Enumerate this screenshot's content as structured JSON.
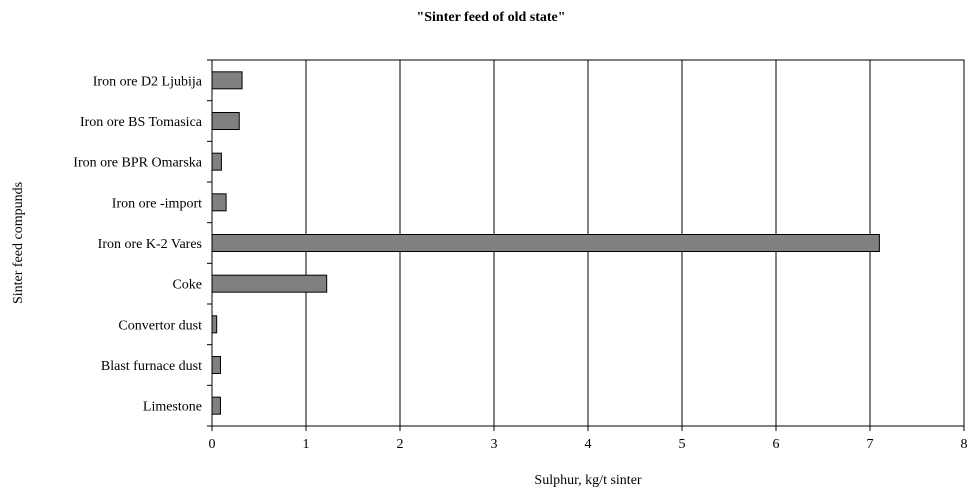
{
  "chart_data": {
    "type": "bar",
    "orientation": "horizontal",
    "title": "\"Sinter feed of old state\"",
    "xlabel": "Sulphur, kg/t sinter",
    "ylabel": "Sinter feed compunds",
    "categories": [
      "Iron ore D2 Ljubija",
      "Iron ore BS Tomasica",
      "Iron ore BPR Omarska",
      "Iron ore -import",
      "Iron ore K-2 Vares",
      "Coke",
      "Convertor dust",
      "Blast furnace dust",
      "Limestone"
    ],
    "values": [
      0.32,
      0.29,
      0.1,
      0.15,
      7.1,
      1.22,
      0.05,
      0.09,
      0.09
    ],
    "xlim": [
      0,
      8
    ],
    "xticks": [
      0,
      1,
      2,
      3,
      4,
      5,
      6,
      7,
      8
    ],
    "grid": "vertical",
    "bar_color": "#808080",
    "bar_edge_color": "#000000",
    "legend": "none"
  }
}
